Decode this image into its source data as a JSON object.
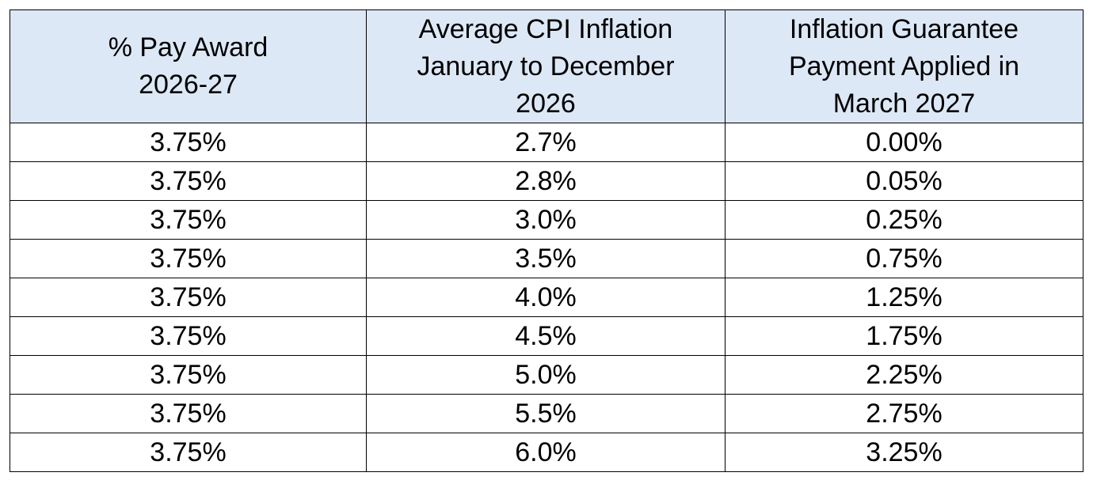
{
  "table": {
    "header": [
      [
        "% Pay Award",
        "2026-27"
      ],
      [
        "Average CPI Inflation",
        "January to December",
        "2026"
      ],
      [
        "Inflation Guarantee",
        "Payment Applied in",
        "March 2027"
      ]
    ],
    "rows": [
      [
        "3.75%",
        "2.7%",
        "0.00%"
      ],
      [
        "3.75%",
        "2.8%",
        "0.05%"
      ],
      [
        "3.75%",
        "3.0%",
        "0.25%"
      ],
      [
        "3.75%",
        "3.5%",
        "0.75%"
      ],
      [
        "3.75%",
        "4.0%",
        "1.25%"
      ],
      [
        "3.75%",
        "4.5%",
        "1.75%"
      ],
      [
        "3.75%",
        "5.0%",
        "2.25%"
      ],
      [
        "3.75%",
        "5.5%",
        "2.75%"
      ],
      [
        "3.75%",
        "6.0%",
        "3.25%"
      ]
    ]
  }
}
